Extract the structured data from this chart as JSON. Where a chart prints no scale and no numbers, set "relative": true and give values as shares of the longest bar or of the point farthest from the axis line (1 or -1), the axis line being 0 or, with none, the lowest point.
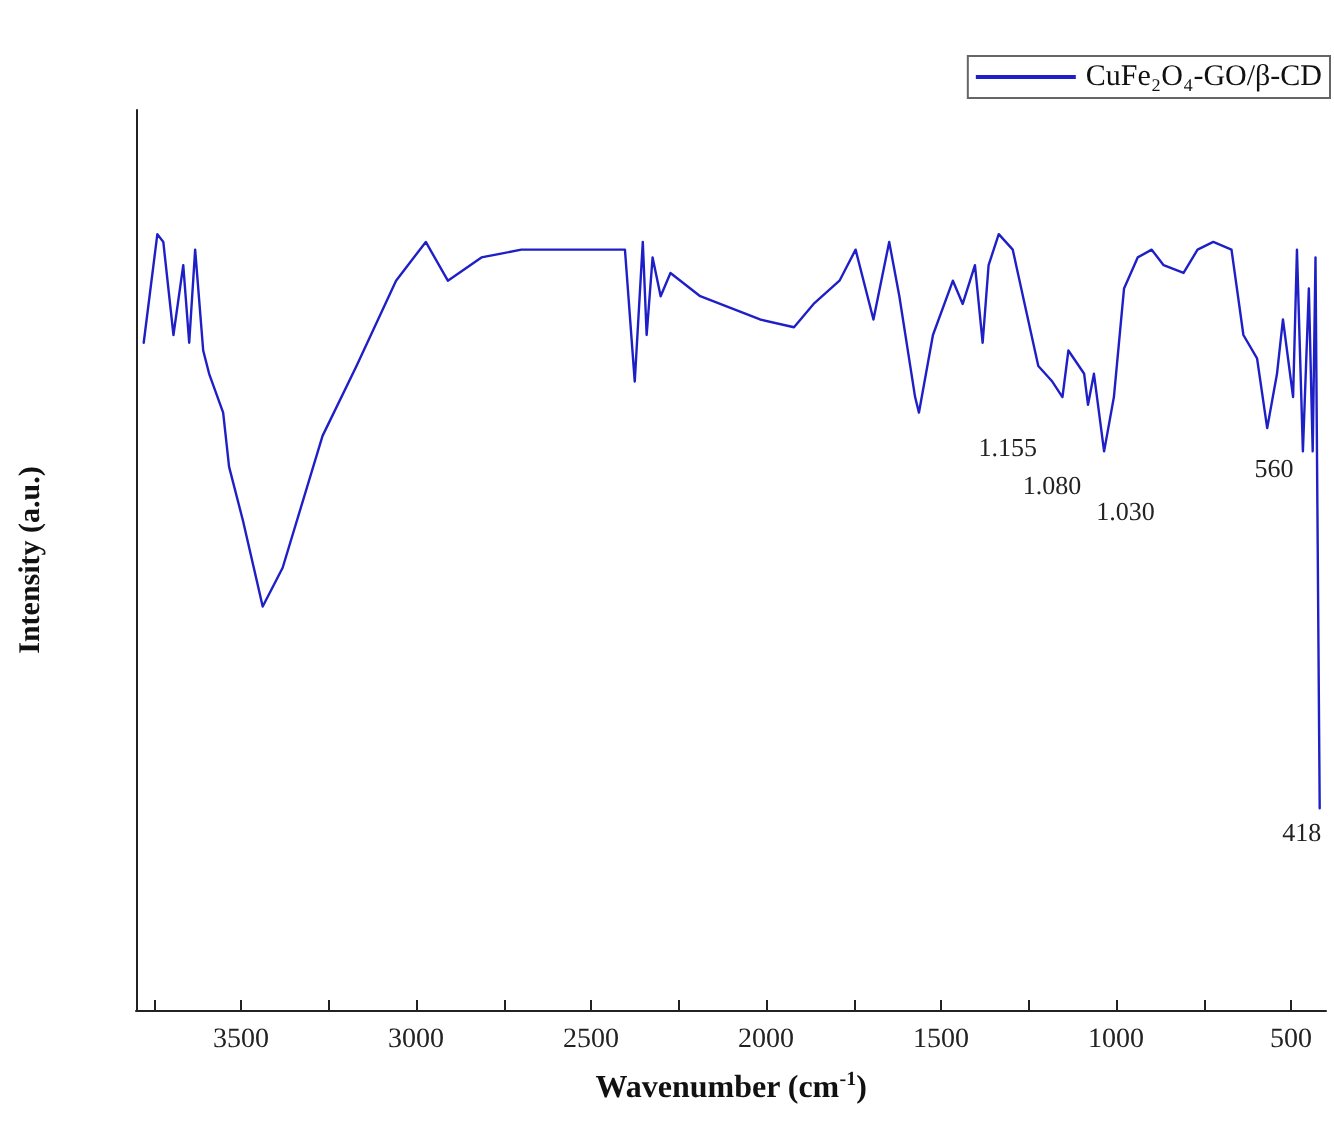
{
  "chart_data": {
    "type": "line",
    "relative": true,
    "xlabel": "Wavenumber (cm$^{-1}$)",
    "ylabel": "Intensity (a.u.)",
    "legend": "top right",
    "grid": false,
    "marker": "none",
    "line_style": "solid",
    "xlim": [
      3800,
      400
    ],
    "xticks": [
      {
        "value": 3750,
        "label": null
      },
      3500,
      {
        "value": 3250,
        "label": null
      },
      3000,
      {
        "value": 2750,
        "label": null
      },
      2500,
      {
        "value": 2250,
        "label": null
      },
      2000,
      {
        "value": 1750,
        "label": null
      },
      1500,
      {
        "value": 1250,
        "label": null
      },
      1000,
      {
        "value": 750,
        "label": null
      },
      500
    ],
    "series": [
      {
        "name": "CuFe₂O₄-GO/β-CD",
        "color": "#1f1fc8",
        "x": [
          3778,
          3739,
          3722,
          3693,
          3665,
          3648,
          3631,
          3608,
          3591,
          3551,
          3534,
          3494,
          3438,
          3381,
          3267,
          3170,
          3057,
          2972,
          2909,
          2813,
          2699,
          2511,
          2403,
          2375,
          2352,
          2341,
          2324,
          2301,
          2273,
          2188,
          2074,
          2017,
          1920,
          1864,
          1790,
          1744,
          1693,
          1648,
          1619,
          1574,
          1563,
          1523,
          1466,
          1438,
          1403,
          1381,
          1364,
          1335,
          1295,
          1261,
          1222,
          1182,
          1153,
          1136,
          1091,
          1080,
          1063,
          1034,
          1006,
          977,
          938,
          898,
          864,
          807,
          767,
          722,
          670,
          636,
          597,
          568,
          540,
          523,
          494,
          483,
          466,
          449,
          438,
          430,
          418
        ],
        "values": [
          0.86,
          1.0,
          0.99,
          0.87,
          0.96,
          0.86,
          0.98,
          0.85,
          0.82,
          0.77,
          0.7,
          0.63,
          0.52,
          0.57,
          0.74,
          0.83,
          0.94,
          0.99,
          0.94,
          0.97,
          0.98,
          0.98,
          0.98,
          0.81,
          0.99,
          0.87,
          0.97,
          0.92,
          0.95,
          0.92,
          0.9,
          0.89,
          0.88,
          0.91,
          0.94,
          0.98,
          0.89,
          0.99,
          0.92,
          0.79,
          0.77,
          0.87,
          0.94,
          0.91,
          0.96,
          0.86,
          0.96,
          1.0,
          0.98,
          0.91,
          0.83,
          0.81,
          0.79,
          0.85,
          0.82,
          0.78,
          0.82,
          0.72,
          0.79,
          0.93,
          0.97,
          0.98,
          0.96,
          0.95,
          0.98,
          0.99,
          0.98,
          0.87,
          0.84,
          0.75,
          0.82,
          0.89,
          0.79,
          0.98,
          0.72,
          0.93,
          0.72,
          0.97,
          0.26
        ]
      }
    ],
    "annotations": [
      {
        "text": "1.155",
        "x": 1155,
        "y": 0.79
      },
      {
        "text": "1.080",
        "x": 1080,
        "y": 0.78
      },
      {
        "text": "1.030",
        "x": 1030,
        "y": 0.72
      },
      {
        "text": "560",
        "x": 560,
        "y": 0.75
      },
      {
        "text": "418",
        "x": 418,
        "y": 0.26
      }
    ]
  }
}
